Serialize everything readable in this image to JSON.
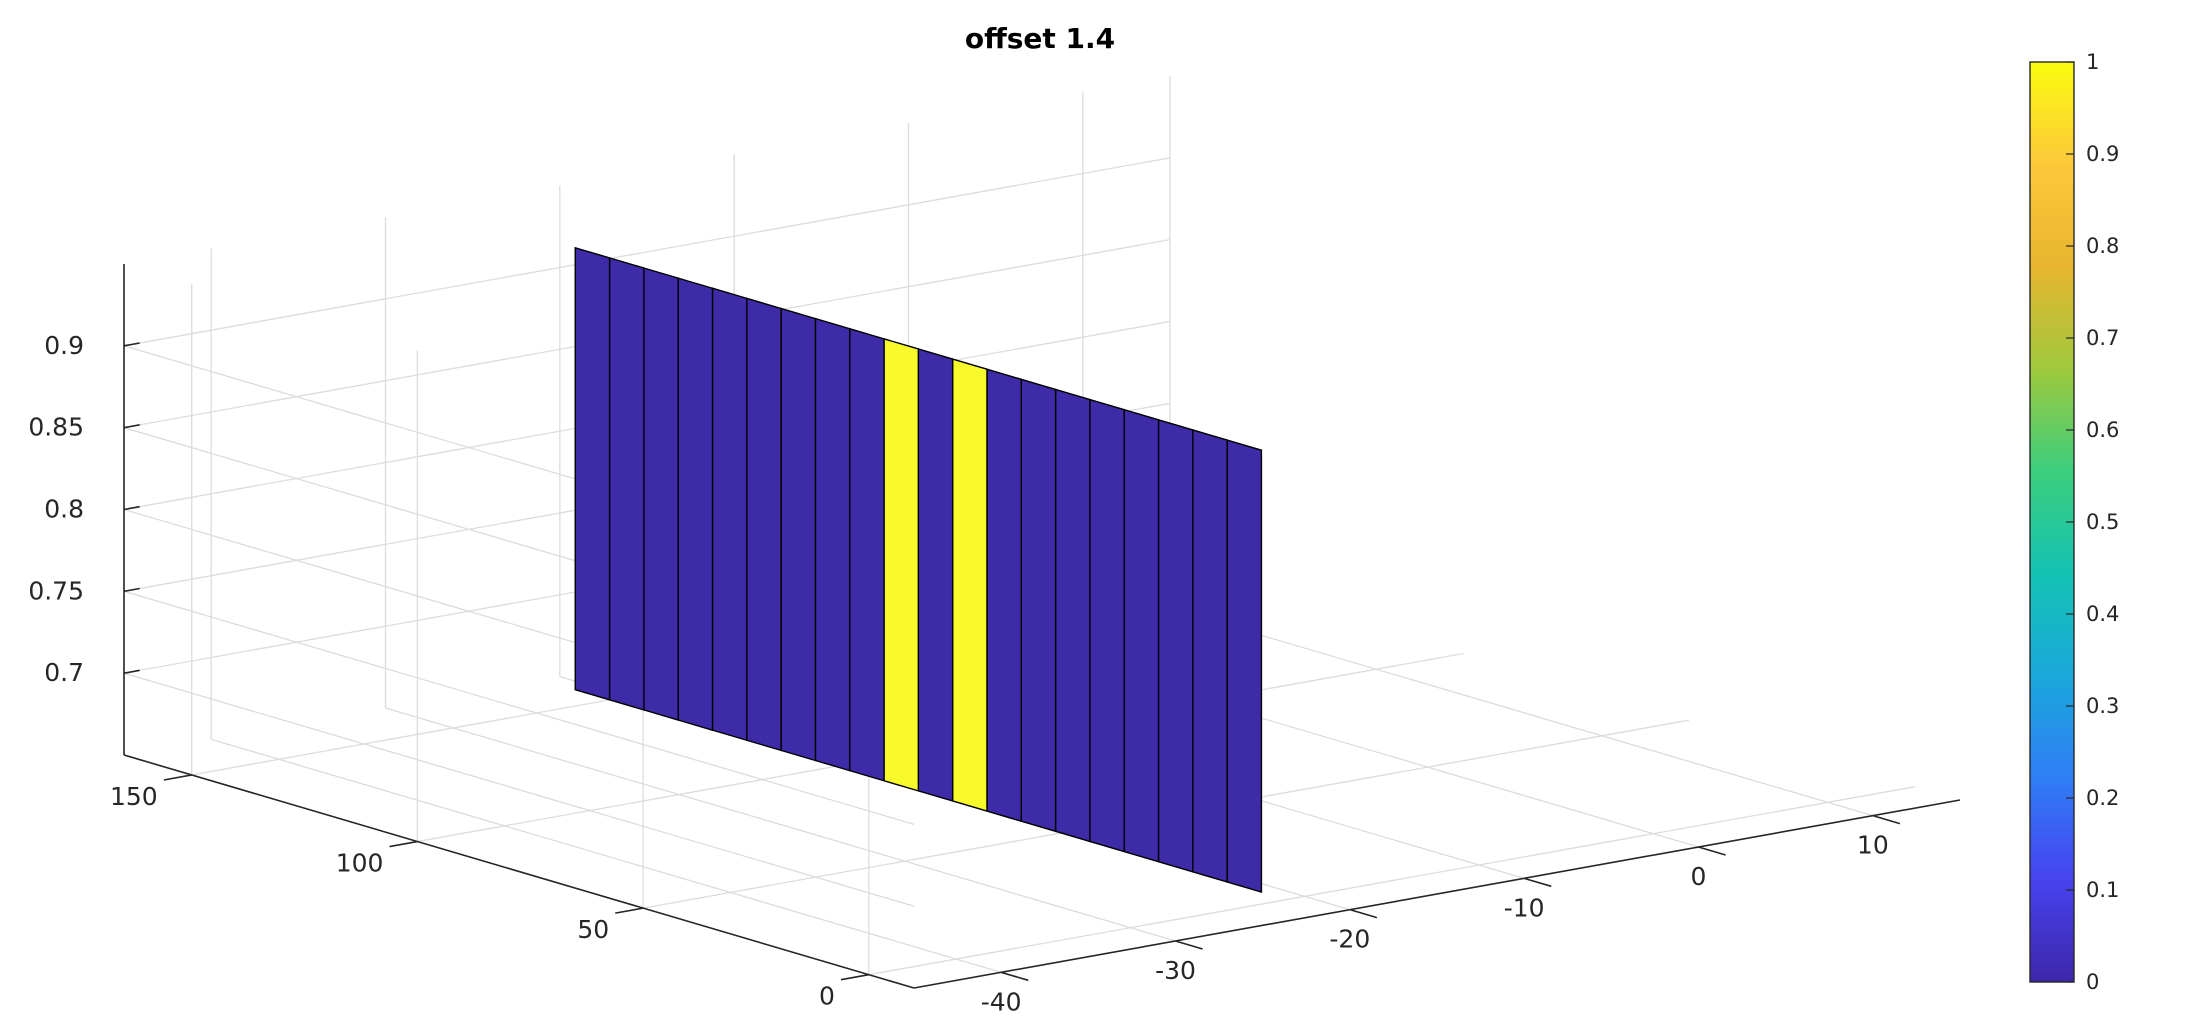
{
  "chart_data": {
    "type": "surface",
    "title": "offset 1.4",
    "xlabel": "",
    "ylabel": "",
    "zlabel": "",
    "xlim": [
      -45,
      15
    ],
    "ylim": [
      -10,
      165
    ],
    "zlim": [
      0.65,
      0.95
    ],
    "x_ticks": [
      -40,
      -30,
      -20,
      -10,
      0,
      10
    ],
    "y_ticks": [
      0,
      50,
      100,
      150
    ],
    "z_ticks": [
      0.7,
      0.75,
      0.8,
      0.85,
      0.9
    ],
    "x_tick_labels": [
      "-40",
      "-30",
      "-20",
      "-10",
      "0",
      "10"
    ],
    "y_tick_labels": [
      "0",
      "50",
      "100",
      "150"
    ],
    "z_tick_labels": [
      "0.7",
      "0.75",
      "0.8",
      "0.85",
      "0.9"
    ],
    "grid": true,
    "x": -23,
    "y_range": [
      -2,
      150
    ],
    "z_range": [
      0.66,
      0.93
    ],
    "strips_value": [
      0,
      0,
      0,
      0,
      0,
      0,
      0,
      0,
      1,
      0,
      1,
      0,
      0,
      0,
      0,
      0,
      0,
      0,
      0,
      0
    ],
    "colorbar": {
      "limits": [
        0,
        1
      ],
      "ticks": [
        0,
        0.1,
        0.2,
        0.3,
        0.4,
        0.5,
        0.6,
        0.7,
        0.8,
        0.9,
        1
      ],
      "tick_labels": [
        "0",
        "0.1",
        "0.2",
        "0.3",
        "0.4",
        "0.5",
        "0.6",
        "0.7",
        "0.8",
        "0.9",
        "1"
      ],
      "colormap": [
        "#3e26a8",
        "#4743f0",
        "#2f7ef6",
        "#1aa8db",
        "#14c3b3",
        "#3cce7c",
        "#9fc93d",
        "#e7b52f",
        "#fdc93b",
        "#f9fb0e"
      ]
    },
    "colors": {
      "low": "#3d2ba8",
      "high": "#f8fa2c",
      "edge": "#000000"
    }
  }
}
